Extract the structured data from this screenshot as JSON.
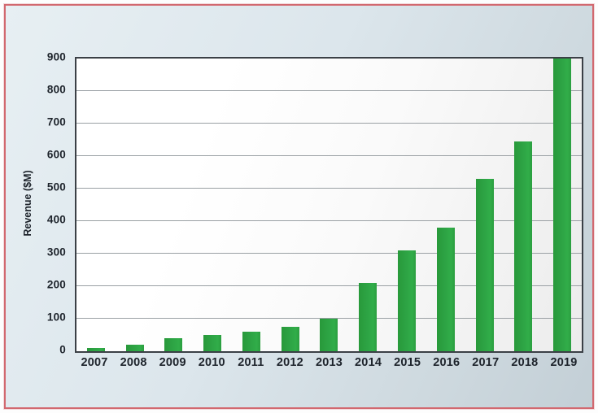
{
  "chart_data": {
    "type": "bar",
    "title": "",
    "xlabel": "",
    "ylabel": "Revenue ($M)",
    "categories": [
      "2007",
      "2008",
      "2009",
      "2010",
      "2011",
      "2012",
      "2013",
      "2014",
      "2015",
      "2016",
      "2017",
      "2018",
      "2019"
    ],
    "values": [
      10,
      20,
      40,
      50,
      60,
      75,
      100,
      210,
      310,
      380,
      530,
      645,
      900
    ],
    "ylim": [
      0,
      900
    ],
    "y_ticks": [
      0,
      100,
      200,
      300,
      400,
      500,
      600,
      700,
      800,
      900
    ],
    "grid": "horizontal",
    "legend": "none"
  },
  "colors": {
    "bar": "#2da344",
    "panel_border": "#d2686f",
    "plot_frame": "#3b4046",
    "gridline": "#9aa0a4",
    "text": "#1d232b"
  }
}
